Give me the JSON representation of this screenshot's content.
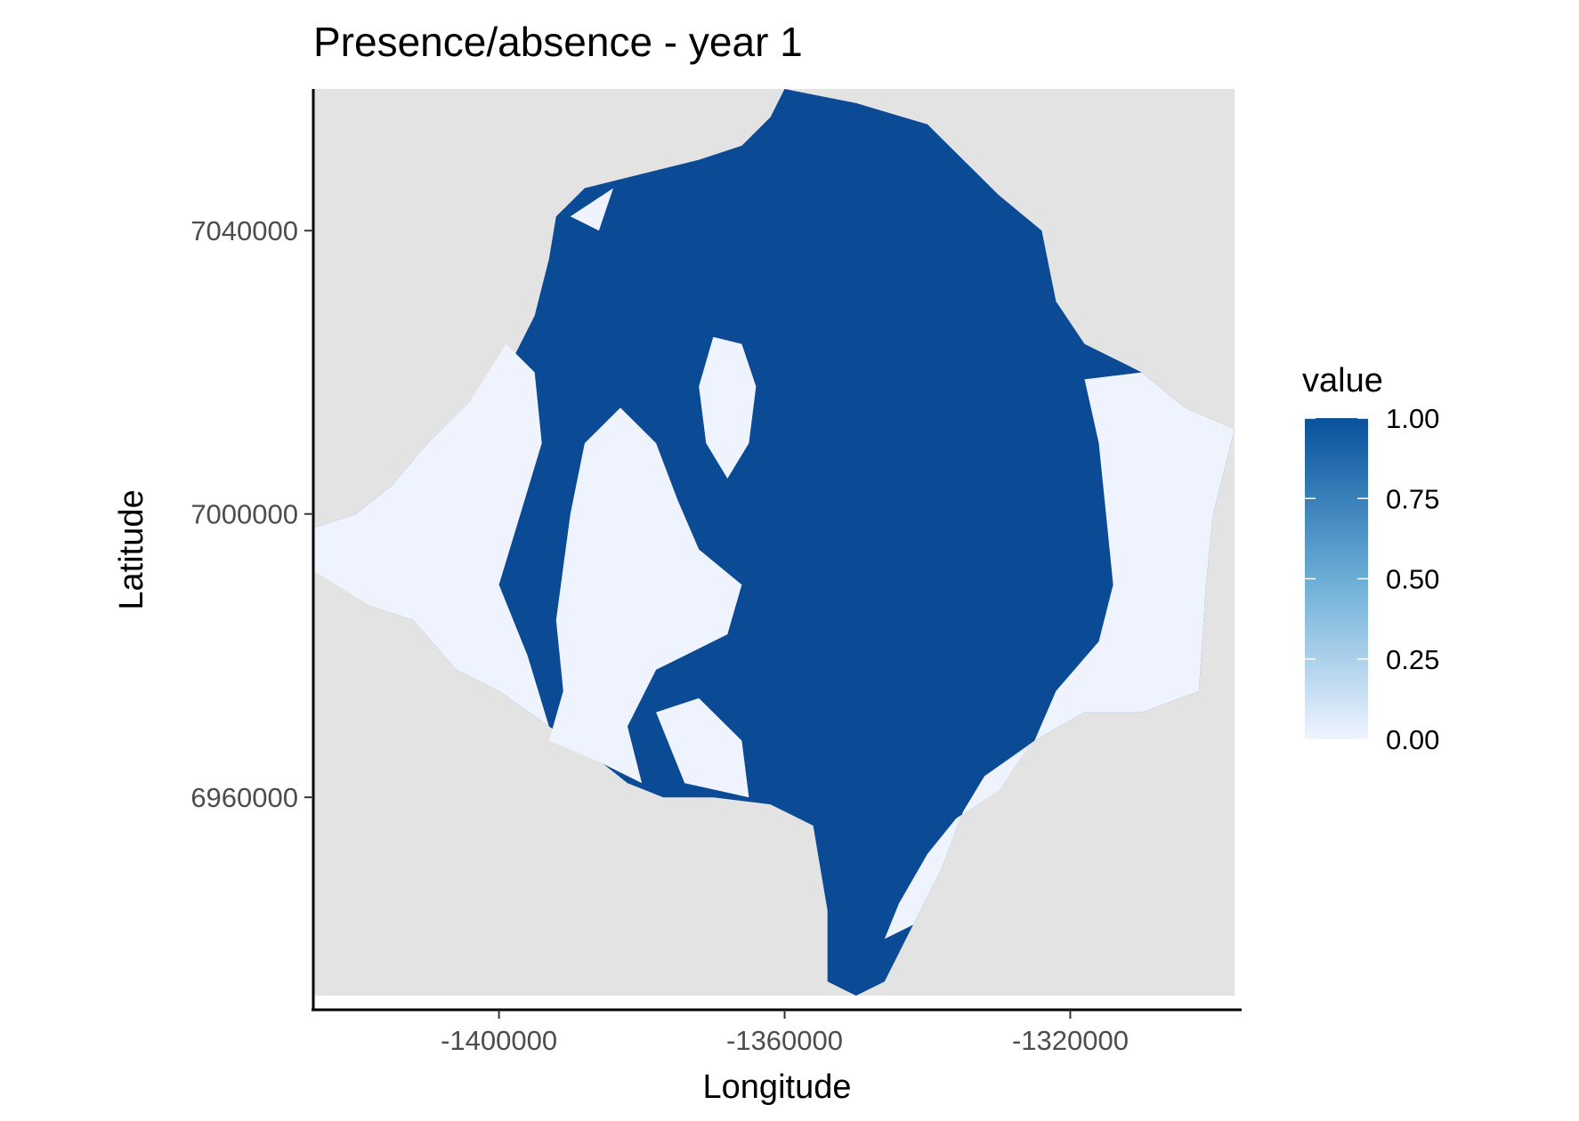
{
  "chart_data": {
    "type": "heatmap",
    "title": "Presence/absence - year 1",
    "xlabel": "Longitude",
    "ylabel": "Latitude",
    "xlim": [
      -1426000,
      -1296000
    ],
    "ylim": [
      6930000,
      7060000
    ],
    "x_ticks": [
      -1400000,
      -1360000,
      -1320000
    ],
    "x_tick_labels": [
      "-1400000",
      "-1360000",
      "-1320000"
    ],
    "y_ticks": [
      6960000,
      7000000,
      7040000
    ],
    "y_tick_labels": [
      "6960000",
      "7000000",
      "7040000"
    ],
    "grid": false,
    "legend": {
      "title": "value",
      "position": "right",
      "ticks": [
        1.0,
        0.75,
        0.5,
        0.25,
        0.0
      ],
      "tick_labels": [
        "1.00",
        "0.75",
        "0.50",
        "0.25",
        "0.00"
      ],
      "low_color": "#eff3ff",
      "high_color": "#08519c"
    },
    "colors": {
      "presence": "#0b4a94",
      "absence": "#eef3fd",
      "no_data": "#e3e3e3"
    },
    "regions": {
      "no_data_extent": {
        "x": [
          -1426000,
          -1297000
        ],
        "y": [
          6932000,
          7060000
        ]
      },
      "study_area_outline": [
        [
          -1360000,
          7060000
        ],
        [
          -1350000,
          7058000
        ],
        [
          -1340000,
          7055000
        ],
        [
          -1335000,
          7050000
        ],
        [
          -1330000,
          7045000
        ],
        [
          -1324000,
          7040000
        ],
        [
          -1322000,
          7030000
        ],
        [
          -1318000,
          7024000
        ],
        [
          -1310000,
          7020000
        ],
        [
          -1304000,
          7015000
        ],
        [
          -1297000,
          7012000
        ],
        [
          -1300000,
          7000000
        ],
        [
          -1301000,
          6990000
        ],
        [
          -1302000,
          6975000
        ],
        [
          -1310000,
          6972000
        ],
        [
          -1318000,
          6972000
        ],
        [
          -1325000,
          6968000
        ],
        [
          -1332000,
          6963000
        ],
        [
          -1335000,
          6958000
        ],
        [
          -1338000,
          6950000
        ],
        [
          -1342000,
          6942000
        ],
        [
          -1346000,
          6934000
        ],
        [
          -1350000,
          6932000
        ],
        [
          -1354000,
          6934000
        ],
        [
          -1354000,
          6944000
        ],
        [
          -1356000,
          6956000
        ],
        [
          -1362000,
          6959000
        ],
        [
          -1370000,
          6960000
        ],
        [
          -1377000,
          6960000
        ],
        [
          -1382000,
          6962000
        ],
        [
          -1387000,
          6966000
        ],
        [
          -1393000,
          6970000
        ],
        [
          -1400000,
          6975000
        ],
        [
          -1406000,
          6978000
        ],
        [
          -1412000,
          6985000
        ],
        [
          -1418000,
          6987000
        ],
        [
          -1422000,
          6992000
        ],
        [
          -1426000,
          6992000
        ],
        [
          -1426000,
          6998000
        ],
        [
          -1420000,
          7000000
        ],
        [
          -1415000,
          7004000
        ],
        [
          -1410000,
          7010000
        ],
        [
          -1404000,
          7016000
        ],
        [
          -1398000,
          7022000
        ],
        [
          -1395000,
          7028000
        ],
        [
          -1393000,
          7036000
        ],
        [
          -1392000,
          7042000
        ],
        [
          -1388000,
          7046000
        ],
        [
          -1380000,
          7048000
        ],
        [
          -1372000,
          7050000
        ],
        [
          -1366000,
          7052000
        ],
        [
          -1362000,
          7056000
        ]
      ],
      "absence_patches": [
        [
          [
            -1310000,
            7020000
          ],
          [
            -1304000,
            7015000
          ],
          [
            -1297000,
            7012000
          ],
          [
            -1300000,
            7000000
          ],
          [
            -1301000,
            6990000
          ],
          [
            -1302000,
            6975000
          ],
          [
            -1310000,
            6972000
          ],
          [
            -1318000,
            6972000
          ],
          [
            -1325000,
            6968000
          ],
          [
            -1322000,
            6975000
          ],
          [
            -1316000,
            6982000
          ],
          [
            -1314000,
            6990000
          ],
          [
            -1315000,
            7000000
          ],
          [
            -1316000,
            7010000
          ],
          [
            -1318000,
            7019000
          ]
        ],
        [
          [
            -1326000,
            6967000
          ],
          [
            -1332000,
            6963000
          ],
          [
            -1335000,
            6958000
          ],
          [
            -1338000,
            6950000
          ],
          [
            -1342000,
            6942000
          ],
          [
            -1346000,
            6940000
          ],
          [
            -1344000,
            6945000
          ],
          [
            -1340000,
            6952000
          ],
          [
            -1336000,
            6957000
          ],
          [
            -1330000,
            6961000
          ]
        ],
        [
          [
            -1426000,
            6992000
          ],
          [
            -1418000,
            6987000
          ],
          [
            -1412000,
            6985000
          ],
          [
            -1406000,
            6978000
          ],
          [
            -1400000,
            6975000
          ],
          [
            -1393000,
            6970000
          ],
          [
            -1396000,
            6980000
          ],
          [
            -1400000,
            6990000
          ],
          [
            -1397000,
            7000000
          ],
          [
            -1394000,
            7010000
          ],
          [
            -1395000,
            7020000
          ],
          [
            -1399000,
            7024000
          ],
          [
            -1404000,
            7016000
          ],
          [
            -1410000,
            7010000
          ],
          [
            -1415000,
            7004000
          ],
          [
            -1420000,
            7000000
          ],
          [
            -1426000,
            6998000
          ]
        ],
        [
          [
            -1393000,
            6968000
          ],
          [
            -1386000,
            6965000
          ],
          [
            -1380000,
            6962000
          ],
          [
            -1382000,
            6970000
          ],
          [
            -1378000,
            6978000
          ],
          [
            -1368000,
            6983000
          ],
          [
            -1366000,
            6990000
          ],
          [
            -1372000,
            6995000
          ],
          [
            -1375000,
            7002000
          ],
          [
            -1378000,
            7010000
          ],
          [
            -1383000,
            7015000
          ],
          [
            -1388000,
            7010000
          ],
          [
            -1390000,
            7000000
          ],
          [
            -1392000,
            6985000
          ],
          [
            -1391000,
            6975000
          ]
        ],
        [
          [
            -1374000,
            6962000
          ],
          [
            -1365000,
            6960000
          ],
          [
            -1366000,
            6968000
          ],
          [
            -1372000,
            6974000
          ],
          [
            -1378000,
            6972000
          ]
        ],
        [
          [
            -1370000,
            7025000
          ],
          [
            -1366000,
            7024000
          ],
          [
            -1364000,
            7018000
          ],
          [
            -1365000,
            7010000
          ],
          [
            -1368000,
            7005000
          ],
          [
            -1371000,
            7010000
          ],
          [
            -1372000,
            7018000
          ]
        ],
        [
          [
            -1390000,
            7042000
          ],
          [
            -1384000,
            7046000
          ],
          [
            -1386000,
            7040000
          ]
        ]
      ]
    }
  }
}
